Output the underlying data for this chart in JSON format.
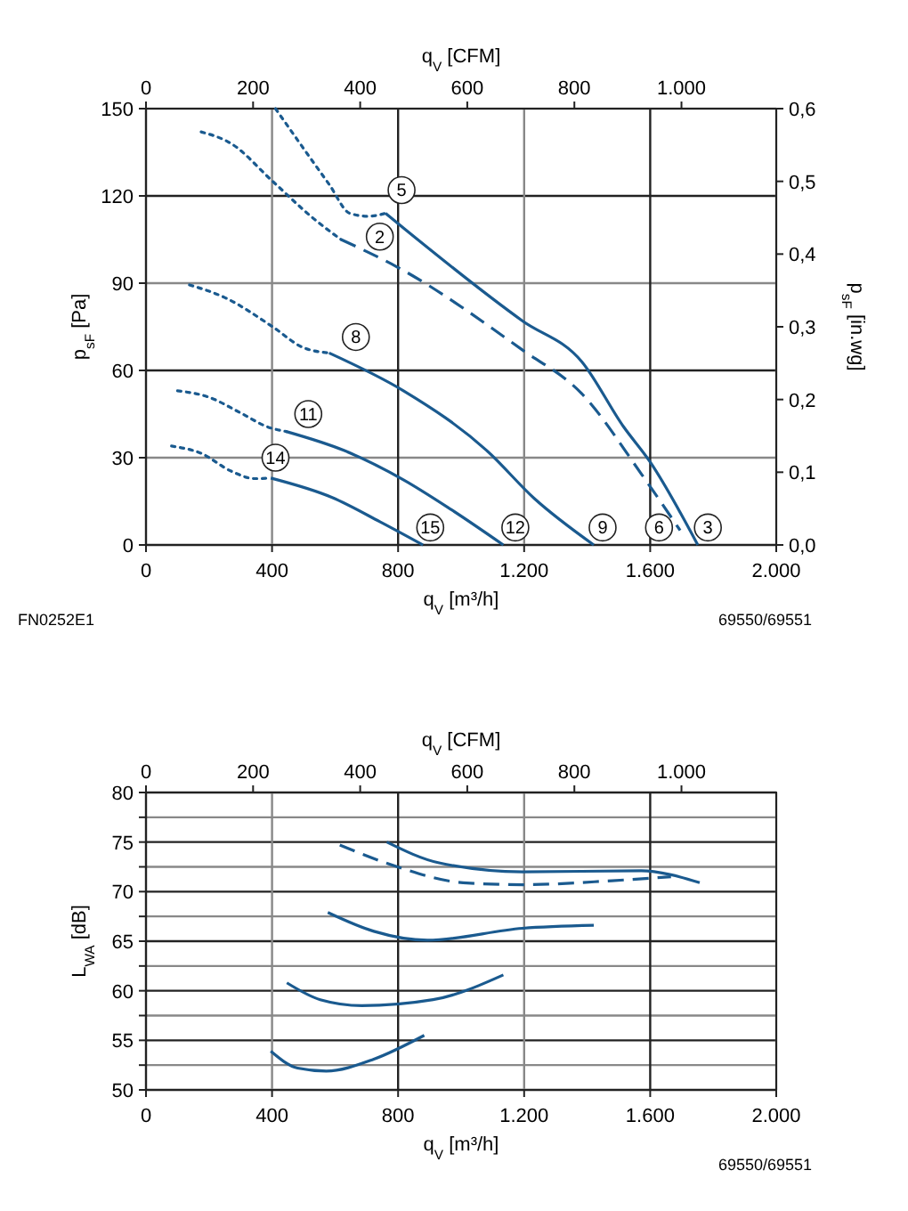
{
  "chart_data": [
    {
      "type": "line",
      "xlabel": "q$_{V}$ [m³/h]",
      "ylabel": "p$_{sF}$ [Pa]",
      "y2label": "p$_{sF}$ [in.wg]",
      "x2label": "q$_{V}$ [CFM]",
      "xlim": [
        0,
        2000
      ],
      "xticks": [
        0,
        400,
        800,
        {
          "value": 1200,
          "label": "1.200"
        },
        {
          "value": 1600,
          "label": "1.600"
        },
        {
          "value": 2000,
          "label": "2.000"
        }
      ],
      "x2lim": [
        0,
        1177
      ],
      "x2ticks": [
        0,
        200,
        400,
        600,
        800,
        {
          "value": 1000,
          "label": "1.000"
        }
      ],
      "ylim": [
        0,
        150
      ],
      "yticks": [
        0,
        30,
        60,
        90,
        120,
        150
      ],
      "y2lim": [
        0,
        0.6
      ],
      "y2ticks": [
        {
          "value": 0,
          "label": "0,0"
        },
        {
          "value": 0.1,
          "label": "0,1"
        },
        {
          "value": 0.2,
          "label": "0,2"
        },
        {
          "value": 0.3,
          "label": "0,3"
        },
        {
          "value": 0.4,
          "label": "0,4"
        },
        {
          "value": 0.5,
          "label": "0,5"
        },
        {
          "value": 0.6,
          "label": "0,6"
        }
      ],
      "grid": true,
      "series": [
        {
          "color": "#1a5a8f",
          "line_style": "dotted",
          "x": [
            411,
            515,
            581,
            647,
            704,
            760
          ],
          "values": [
            150,
            134,
            124,
            114,
            113,
            114
          ]
        },
        {
          "color": "#1a5a8f",
          "line_style": "solid",
          "x": [
            760,
            1195,
            1383,
            1515,
            1600,
            1751
          ],
          "values": [
            114,
            77,
            63,
            40.7,
            28.5,
            0
          ]
        },
        {
          "color": "#1a5a8f",
          "line_style": "dotted",
          "x": [
            175,
            270,
            402,
            534,
            619
          ],
          "values": [
            142,
            138,
            125,
            112,
            105
          ]
        },
        {
          "color": "#1a5a8f",
          "line_style": "dashed",
          "x": [
            619,
            798,
            1195,
            1383,
            1572,
            1695
          ],
          "values": [
            105,
            95.5,
            67,
            52,
            24.4,
            5
          ]
        },
        {
          "color": "#1a5a8f",
          "line_style": "dotted",
          "x": [
            138,
            251,
            402,
            496,
            581
          ],
          "values": [
            89.4,
            85,
            75,
            68,
            66
          ]
        },
        {
          "color": "#1a5a8f",
          "line_style": "solid",
          "x": [
            581,
            817,
            1081,
            1232,
            1421
          ],
          "values": [
            66,
            53,
            32.5,
            16,
            0
          ]
        },
        {
          "color": "#1a5a8f",
          "line_style": "dotted",
          "x": [
            100,
            194,
            307,
            383,
            445
          ],
          "values": [
            53,
            51,
            45,
            40.7,
            39
          ]
        },
        {
          "color": "#1a5a8f",
          "line_style": "solid",
          "x": [
            445,
            628,
            817,
            968,
            1134
          ],
          "values": [
            39,
            32.5,
            22.4,
            12.2,
            0
          ]
        },
        {
          "color": "#1a5a8f",
          "line_style": "dotted",
          "x": [
            81,
            175,
            270,
            345,
            396
          ],
          "values": [
            34,
            31.5,
            25.4,
            22.8,
            23
          ]
        },
        {
          "color": "#1a5a8f",
          "line_style": "solid",
          "x": [
            396,
            591,
            742,
            879
          ],
          "values": [
            23,
            16.3,
            8,
            0
          ]
        }
      ],
      "annotations": [
        {
          "text": "5",
          "x": 811,
          "y": 122
        },
        {
          "text": "2",
          "x": 742,
          "y": 106
        },
        {
          "text": "8",
          "x": 666,
          "y": 71.5
        },
        {
          "text": "11",
          "x": 515,
          "y": 45
        },
        {
          "text": "14",
          "x": 411,
          "y": 30
        },
        {
          "text": "15",
          "x": 902,
          "y": 6
        },
        {
          "text": "12",
          "x": 1172,
          "y": 6
        },
        {
          "text": "9",
          "x": 1449,
          "y": 6
        },
        {
          "text": "6",
          "x": 1628,
          "y": 6
        },
        {
          "text": "3",
          "x": 1783,
          "y": 6
        },
        "FN0252E1",
        "69550/69551"
      ]
    },
    {
      "type": "line",
      "xlabel": "q$_{V}$ [m³/h]",
      "ylabel": "L$_{WA}$ [dB]",
      "x2label": "q$_{V}$ [CFM]",
      "xlim": [
        0,
        2000
      ],
      "xticks": [
        0,
        400,
        800,
        {
          "value": 1200,
          "label": "1.200"
        },
        {
          "value": 1600,
          "label": "1.600"
        },
        {
          "value": 2000,
          "label": "2.000"
        }
      ],
      "x2lim": [
        0,
        1177
      ],
      "x2ticks": [
        0,
        200,
        400,
        600,
        800,
        {
          "value": 1000,
          "label": "1.000"
        }
      ],
      "ylim": [
        50,
        80
      ],
      "yticks": [
        50,
        {
          "value": 52.5,
          "label": null
        },
        55,
        {
          "value": 57.5,
          "label": null
        },
        60,
        {
          "value": 62.5,
          "label": null
        },
        65,
        {
          "value": 67.5,
          "label": null
        },
        70,
        {
          "value": 72.5,
          "label": null
        },
        75,
        {
          "value": 77.5,
          "label": null
        },
        80
      ],
      "grid": true,
      "series": [
        {
          "color": "#1a5a8f",
          "line_style": "solid",
          "x": [
            764,
            930,
            1195,
            1572,
            1666,
            1757
          ],
          "values": [
            75,
            72.9,
            72,
            72.1,
            71.7,
            70.9
          ]
        },
        {
          "color": "#1a5a8f",
          "line_style": "dashed",
          "x": [
            615,
            798,
            1006,
            1195,
            1478,
            1666
          ],
          "values": [
            74.7,
            72.5,
            70.9,
            70.7,
            71.1,
            71.5
          ]
        },
        {
          "color": "#1a5a8f",
          "line_style": "solid",
          "x": [
            577,
            723,
            893,
            1195,
            1421
          ],
          "values": [
            67.9,
            66,
            65.1,
            66.3,
            66.6
          ]
        },
        {
          "color": "#1a5a8f",
          "line_style": "solid",
          "x": [
            447,
            553,
            685,
            911,
            1134
          ],
          "values": [
            60.8,
            59.1,
            58.5,
            59.1,
            61.6
          ]
        },
        {
          "color": "#1a5a8f",
          "line_style": "solid",
          "x": [
            396,
            481,
            572,
            723,
            883
          ],
          "values": [
            53.9,
            52.2,
            51.9,
            53.1,
            55.5
          ]
        }
      ],
      "annotations": [
        "69550/69551"
      ]
    }
  ]
}
